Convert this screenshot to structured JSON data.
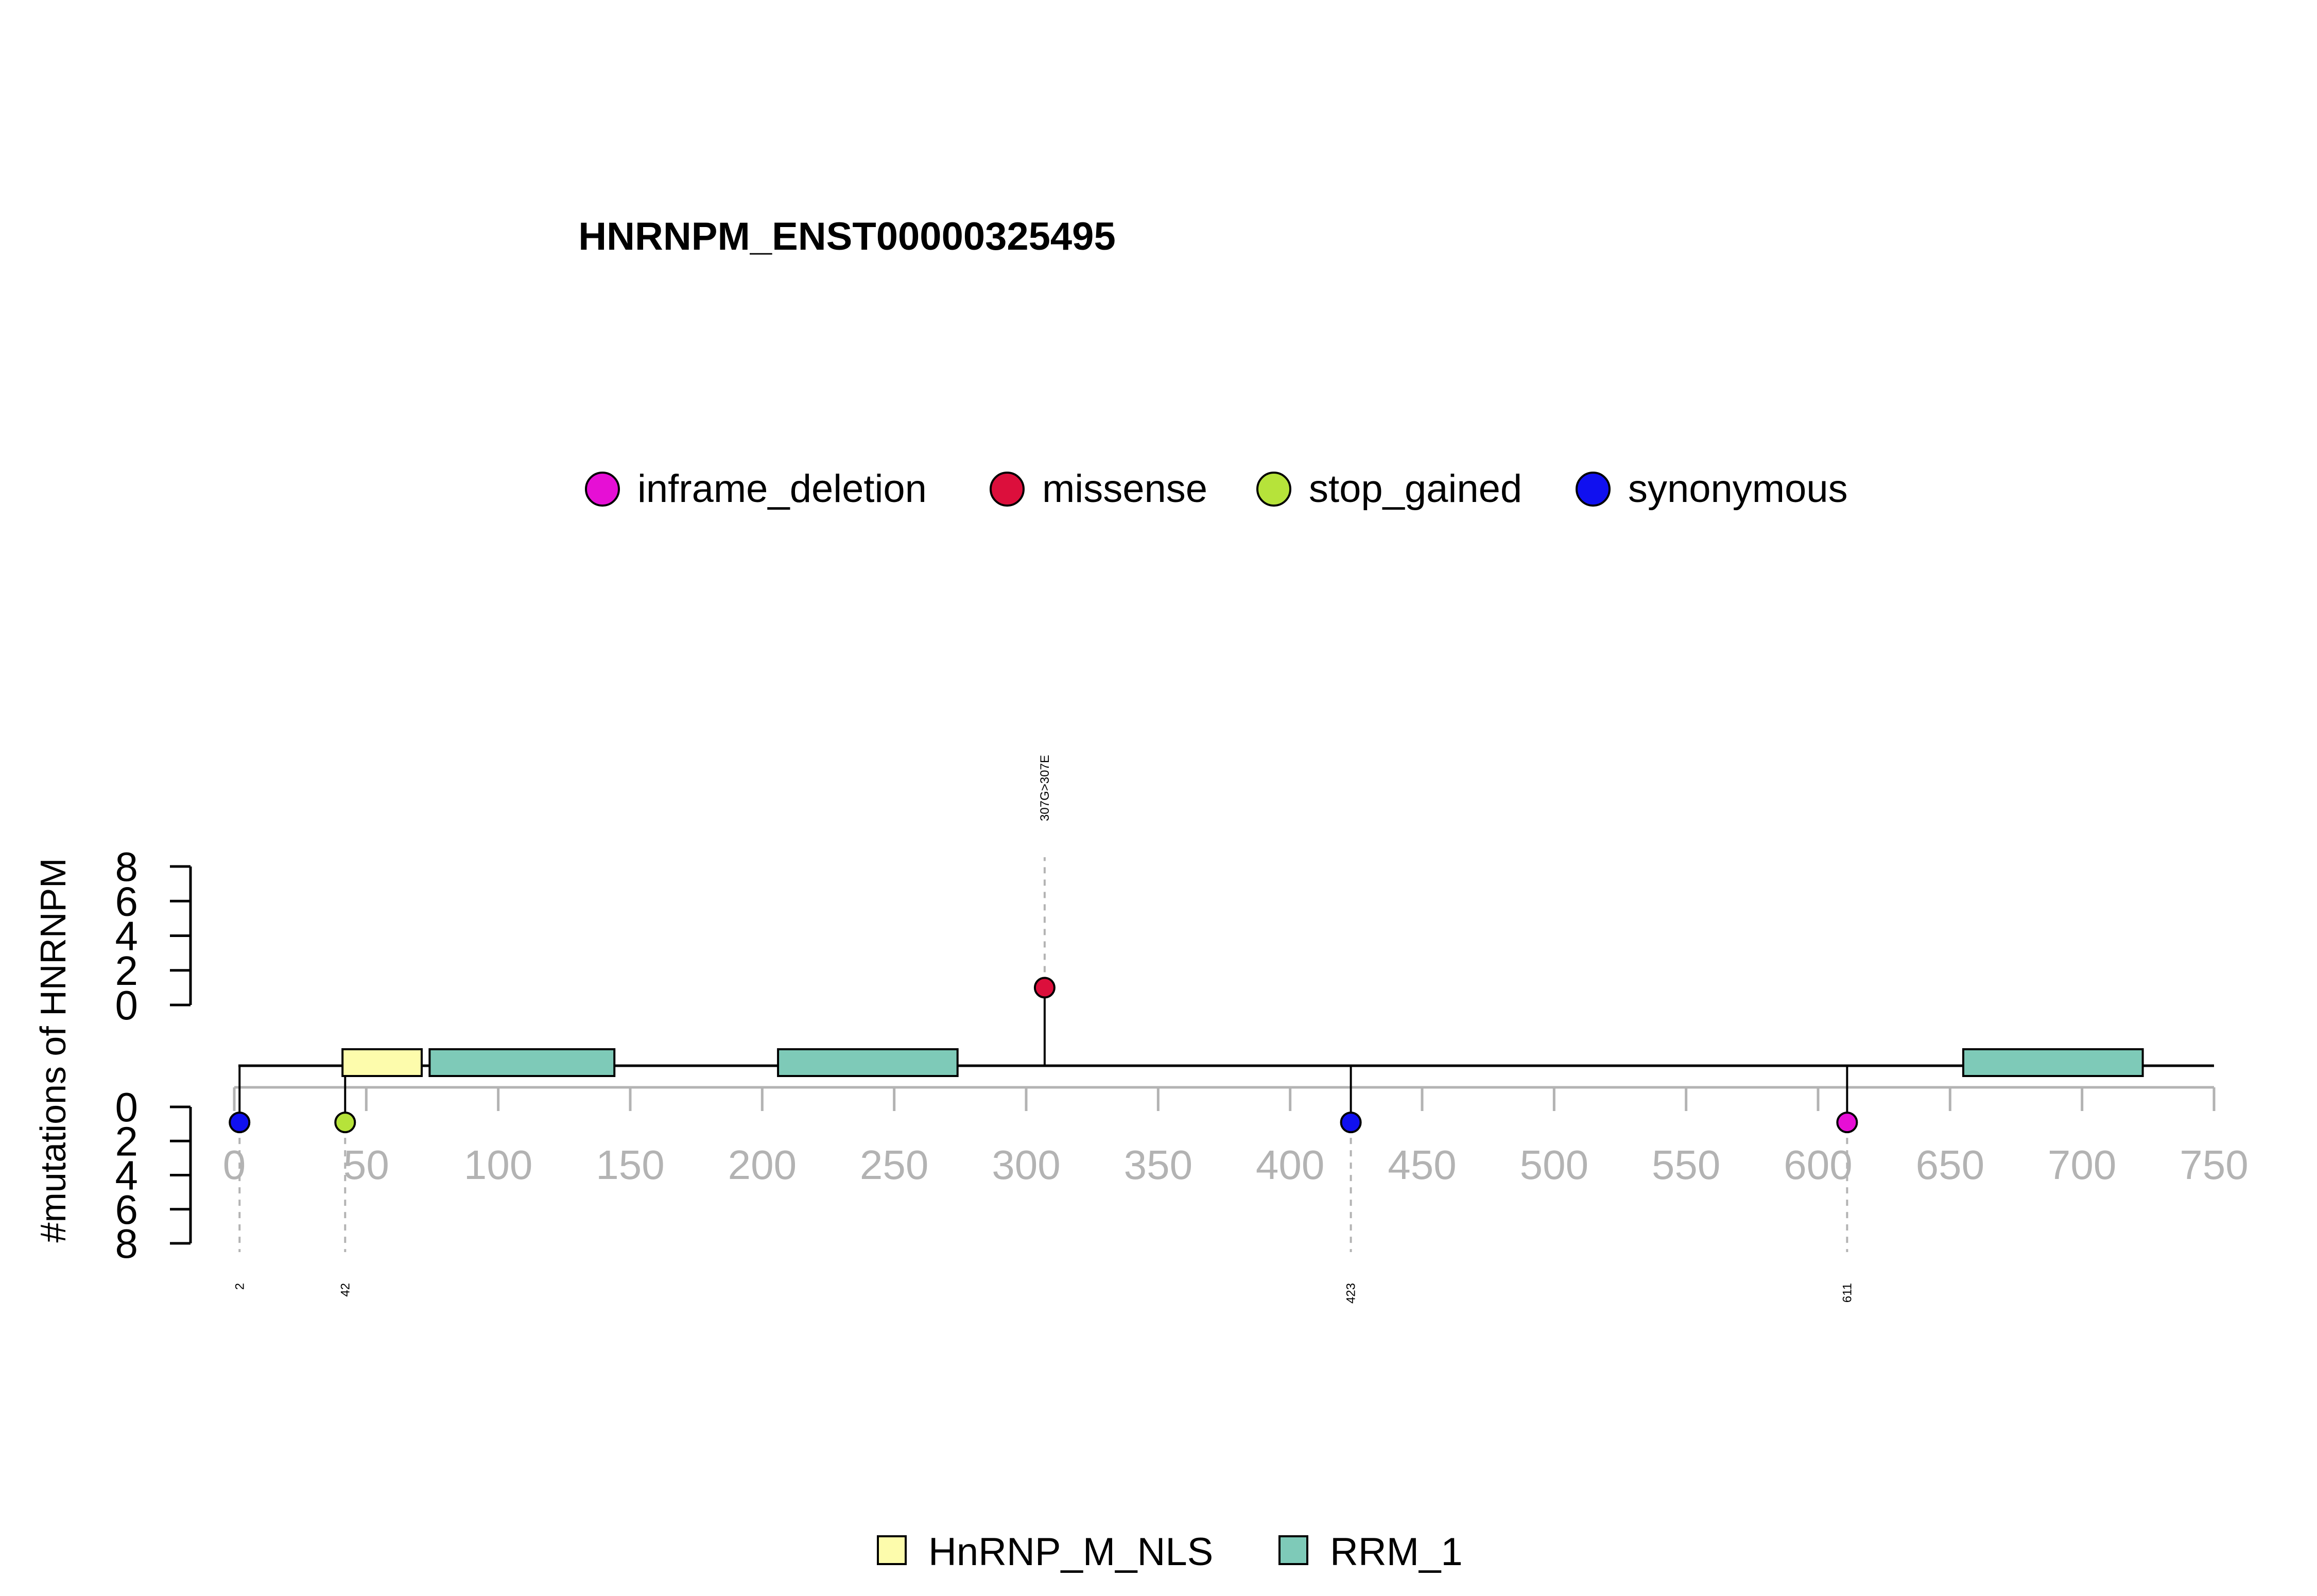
{
  "chart_data": {
    "type": "lollipop",
    "title": "HNRNPM_ENST00000325495",
    "ylabel": "#mutations of HNRNPM",
    "xlim": [
      0,
      750
    ],
    "x_ticks": [
      "0",
      "50",
      "100",
      "150",
      "200",
      "250",
      "300",
      "350",
      "400",
      "450",
      "500",
      "550",
      "600",
      "650",
      "700",
      "750"
    ],
    "y_ticks": [
      "0",
      "2",
      "4",
      "6",
      "8"
    ],
    "ylim": [
      0,
      8
    ],
    "legend_mutations": [
      {
        "label": "inframe_deletion",
        "color": "#e60fd5"
      },
      {
        "label": "missense",
        "color": "#dc0f3c"
      },
      {
        "label": "stop_gained",
        "color": "#b6e33a"
      },
      {
        "label": "synonymous",
        "color": "#1010f0"
      }
    ],
    "legend_domains": [
      {
        "label": "HnRNP_M_NLS",
        "color": "#fdfcac"
      },
      {
        "label": "RRM_1",
        "color": "#7ecab8"
      }
    ],
    "domains": [
      {
        "name": "HnRNP_M_NLS",
        "start": 41,
        "end": 71
      },
      {
        "name": "RRM_1",
        "start": 74,
        "end": 144
      },
      {
        "name": "RRM_1",
        "start": 206,
        "end": 274
      },
      {
        "name": "RRM_1",
        "start": 655,
        "end": 723
      }
    ],
    "mutations": [
      {
        "position": 307,
        "count": 1,
        "type": "missense",
        "side": "top",
        "label": "307G>307E"
      },
      {
        "position": 2,
        "count": 1,
        "type": "synonymous",
        "side": "bottom",
        "label": "2"
      },
      {
        "position": 42,
        "count": 1,
        "type": "stop_gained",
        "side": "bottom",
        "label": "42"
      },
      {
        "position": 423,
        "count": 1,
        "type": "synonymous",
        "side": "bottom",
        "label": "423"
      },
      {
        "position": 611,
        "count": 1,
        "type": "inframe_deletion",
        "side": "bottom",
        "label": "611"
      }
    ]
  }
}
